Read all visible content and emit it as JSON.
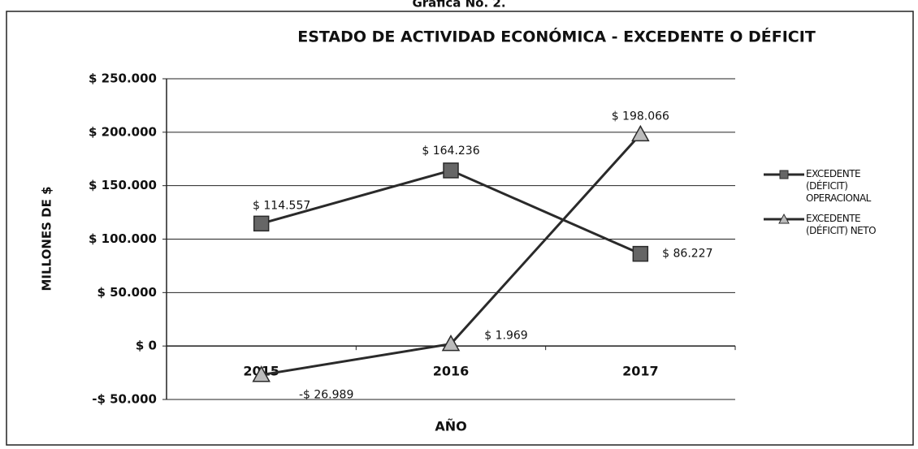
{
  "chart_data": {
    "type": "line",
    "caption": "Gráfica No. 2.",
    "title": "ESTADO DE ACTIVIDAD  ECONÓMICA - EXCEDENTE O DÉFICIT",
    "ylabel": "MILLONES DE $",
    "xlabel": "AÑO",
    "categories": [
      "2015",
      "2016",
      "2017"
    ],
    "series": [
      {
        "name": "EXCEDENTE (DÉFICIT) OPERACIONAL",
        "color": "#2a2a2a",
        "marker": "square",
        "values": [
          114557,
          164236,
          86227
        ],
        "value_labels": [
          "$ 114.557",
          "$ 164.236",
          "$ 86.227"
        ]
      },
      {
        "name": "EXCEDENTE (DÉFICIT) NETO",
        "color": "#2a2a2a",
        "marker": "triangle",
        "values": [
          -26989,
          1969,
          198066
        ],
        "value_labels": [
          "-$ 26.989",
          "$ 1.969",
          "$ 198.066"
        ]
      }
    ],
    "ylim": [
      -50000,
      250000
    ],
    "yticks": [
      {
        "value": -50000,
        "label": "-$ 50.000"
      },
      {
        "value": 0,
        "label": "$ 0"
      },
      {
        "value": 50000,
        "label": "$ 50.000"
      },
      {
        "value": 100000,
        "label": "$ 100.000"
      },
      {
        "value": 150000,
        "label": "$ 150.000"
      },
      {
        "value": 200000,
        "label": "$ 200.000"
      },
      {
        "value": 250000,
        "label": "$ 250.000"
      }
    ],
    "grid": true,
    "legend": "right"
  }
}
